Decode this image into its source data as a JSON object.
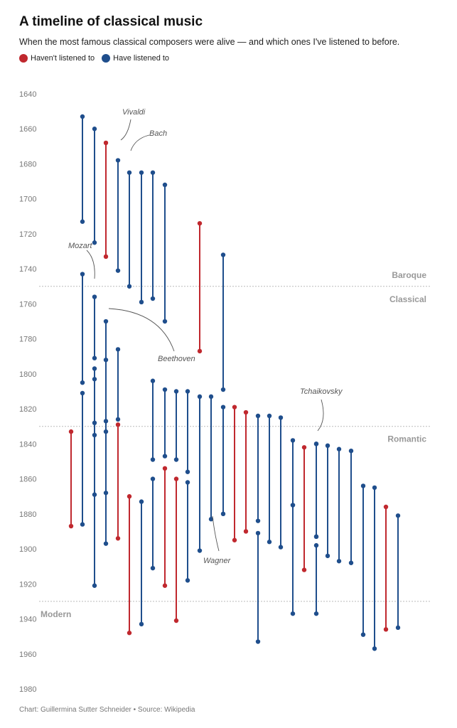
{
  "title": "A timeline of classical music",
  "subtitle": "When the most famous classical composers were alive — and which ones I've listened to before.",
  "footer": "Chart: Guillermina Sutter Schneider • Source: Wikipedia",
  "colors": {
    "not_listened": "#c0282e",
    "listened": "#1f4e8c",
    "era_line": "#bbbbbb",
    "era_text": "#999999",
    "axis_text": "#777777",
    "annotation": "#555555"
  },
  "chart_data": {
    "type": "range",
    "ylim": [
      1640,
      1980
    ],
    "y_reversed": true,
    "y_ticks": [
      1640,
      1660,
      1680,
      1700,
      1720,
      1740,
      1760,
      1780,
      1800,
      1820,
      1840,
      1860,
      1880,
      1900,
      1920,
      1940,
      1960,
      1980
    ],
    "legend": [
      {
        "label": "Haven't listened to",
        "status": "not_listened"
      },
      {
        "label": "Have listened to",
        "status": "listened"
      }
    ],
    "eras": [
      {
        "label": "Baroque",
        "boundary": 1750,
        "side": "above"
      },
      {
        "label": "Classical",
        "boundary": 1750,
        "side": "below"
      },
      {
        "label": "Romantic",
        "boundary": 1830,
        "side": "below"
      },
      {
        "label": "Modern",
        "boundary": 1930,
        "side": "below"
      }
    ],
    "annotations": [
      {
        "label": "Vivaldi",
        "composer_index": 3
      },
      {
        "label": "Bach",
        "composer_index": 5
      },
      {
        "label": "Mozart",
        "composer_index": 13
      },
      {
        "label": "Beethoven",
        "composer_index": 14
      },
      {
        "label": "Wagner",
        "composer_index": 27
      },
      {
        "label": "Tchaikovsky",
        "composer_index": 39
      }
    ],
    "composers": [
      {
        "start": 1653,
        "end": 1713,
        "listened": true
      },
      {
        "start": 1660,
        "end": 1725,
        "listened": true
      },
      {
        "start": 1668,
        "end": 1733,
        "listened": false
      },
      {
        "start": 1678,
        "end": 1741,
        "listened": true
      },
      {
        "start": 1685,
        "end": 1750,
        "listened": true
      },
      {
        "start": 1685,
        "end": 1759,
        "listened": true
      },
      {
        "start": 1685,
        "end": 1757,
        "listened": true
      },
      {
        "start": 1692,
        "end": 1770,
        "listened": true
      },
      {
        "start": 1714,
        "end": 1787,
        "listened": false
      },
      {
        "start": 1732,
        "end": 1809,
        "listened": true
      },
      {
        "start": 1833,
        "end": 1887,
        "listened": false
      },
      {
        "start": 1743,
        "end": 1805,
        "listened": true
      },
      {
        "start": 1811,
        "end": 1886,
        "listened": true
      },
      {
        "start": 1756,
        "end": 1791,
        "listened": true
      },
      {
        "start": 1770,
        "end": 1827,
        "listened": true
      },
      {
        "start": 1786,
        "end": 1826,
        "listened": true
      },
      {
        "start": 1792,
        "end": 1868,
        "listened": true
      },
      {
        "start": 1803,
        "end": 1869,
        "listened": true
      },
      {
        "start": 1804,
        "end": 1849,
        "listened": true
      },
      {
        "start": 1809,
        "end": 1847,
        "listened": true
      },
      {
        "start": 1810,
        "end": 1849,
        "listened": true
      },
      {
        "start": 1810,
        "end": 1856,
        "listened": true
      },
      {
        "start": 1813,
        "end": 1901,
        "listened": true
      },
      {
        "start": 1797,
        "end": 1828,
        "listened": true
      },
      {
        "start": 1835,
        "end": 1921,
        "listened": true
      },
      {
        "start": 1833,
        "end": 1897,
        "listened": true
      },
      {
        "start": 1829,
        "end": 1894,
        "listened": false
      },
      {
        "start": 1813,
        "end": 1883,
        "listened": true
      },
      {
        "start": 1819,
        "end": 1880,
        "listened": true
      },
      {
        "start": 1819,
        "end": 1895,
        "listened": false
      },
      {
        "start": 1822,
        "end": 1890,
        "listened": false
      },
      {
        "start": 1824,
        "end": 1884,
        "listened": true
      },
      {
        "start": 1824,
        "end": 1896,
        "listened": true
      },
      {
        "start": 1825,
        "end": 1899,
        "listened": true
      },
      {
        "start": 1838,
        "end": 1875,
        "listened": true
      },
      {
        "start": 1842,
        "end": 1912,
        "listened": false
      },
      {
        "start": 1840,
        "end": 1893,
        "listened": true
      },
      {
        "start": 1841,
        "end": 1904,
        "listened": true
      },
      {
        "start": 1843,
        "end": 1907,
        "listened": true
      },
      {
        "start": 1840,
        "end": 1893,
        "listened": true
      },
      {
        "start": 1844,
        "end": 1908,
        "listened": true
      },
      {
        "start": 1864,
        "end": 1949,
        "listened": true
      },
      {
        "start": 1865,
        "end": 1957,
        "listened": true
      },
      {
        "start": 1876,
        "end": 1946,
        "listened": false
      },
      {
        "start": 1881,
        "end": 1945,
        "listened": true
      },
      {
        "start": 1870,
        "end": 1948,
        "listened": false
      },
      {
        "start": 1873,
        "end": 1943,
        "listened": true
      },
      {
        "start": 1860,
        "end": 1911,
        "listened": true
      },
      {
        "start": 1854,
        "end": 1921,
        "listened": false
      },
      {
        "start": 1860,
        "end": 1941,
        "listened": false
      },
      {
        "start": 1862,
        "end": 1918,
        "listened": true
      },
      {
        "start": 1891,
        "end": 1953,
        "listened": true
      },
      {
        "start": 1898,
        "end": 1937,
        "listened": true
      },
      {
        "start": 1875,
        "end": 1937,
        "listened": true
      }
    ]
  }
}
